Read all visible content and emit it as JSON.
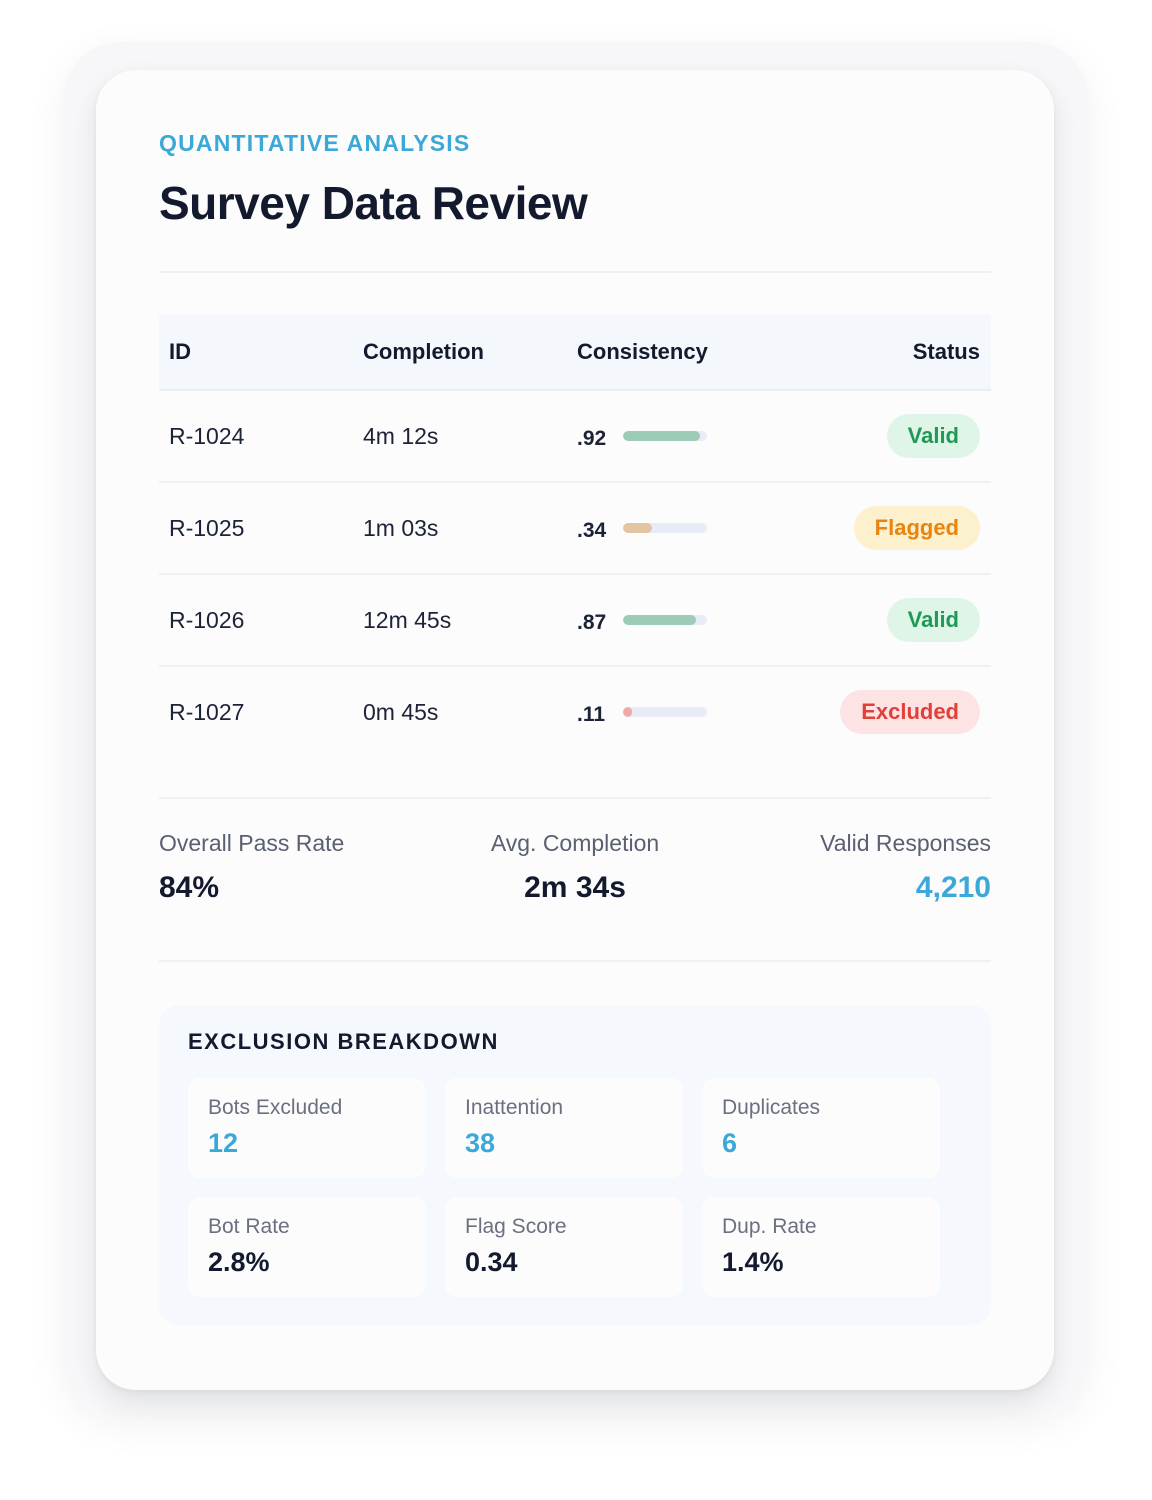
{
  "header": {
    "eyebrow": "QUANTITATIVE ANALYSIS",
    "title": "Survey Data Review"
  },
  "table": {
    "columns": {
      "id": "ID",
      "completion": "Completion",
      "consistency": "Consistency",
      "status": "Status"
    },
    "rows": [
      {
        "id": "R-1024",
        "completion": "4m 12s",
        "consistency": ".92",
        "consistency_level": 0.92,
        "bar_color": "#9ccbb8",
        "status": "Valid",
        "status_kind": "valid"
      },
      {
        "id": "R-1025",
        "completion": "1m 03s",
        "consistency": ".34",
        "consistency_level": 0.34,
        "bar_color": "#e3c4a3",
        "status": "Flagged",
        "status_kind": "flagged"
      },
      {
        "id": "R-1026",
        "completion": "12m 45s",
        "consistency": ".87",
        "consistency_level": 0.87,
        "bar_color": "#9ccbb8",
        "status": "Valid",
        "status_kind": "valid"
      },
      {
        "id": "R-1027",
        "completion": "0m 45s",
        "consistency": ".11",
        "consistency_level": 0.11,
        "bar_color": "#eeaaa8",
        "status": "Excluded",
        "status_kind": "excluded"
      }
    ]
  },
  "summary": {
    "pass_rate": {
      "label": "Overall Pass Rate",
      "value": "84%"
    },
    "avg_completion": {
      "label": "Avg. Completion",
      "value": "2m 34s"
    },
    "valid_responses": {
      "label": "Valid Responses",
      "value": "4,210"
    }
  },
  "exclusion": {
    "title": "EXCLUSION BREAKDOWN",
    "tiles": [
      {
        "label": "Bots Excluded",
        "value": "12",
        "accent": true
      },
      {
        "label": "Inattention",
        "value": "38",
        "accent": true
      },
      {
        "label": "Duplicates",
        "value": "6",
        "accent": true
      },
      {
        "label": "Bot Rate",
        "value": "2.8%",
        "accent": false
      },
      {
        "label": "Flag Score",
        "value": "0.34",
        "accent": false
      },
      {
        "label": "Dup. Rate",
        "value": "1.4%",
        "accent": false
      }
    ]
  },
  "colors": {
    "accent": "#3aa8d8",
    "valid_bg": "#def5e8",
    "valid_fg": "#1f9a55",
    "flagged_bg": "#fdf0cd",
    "flagged_fg": "#e8850f",
    "excluded_bg": "#fde3e3",
    "excluded_fg": "#e0403a"
  }
}
